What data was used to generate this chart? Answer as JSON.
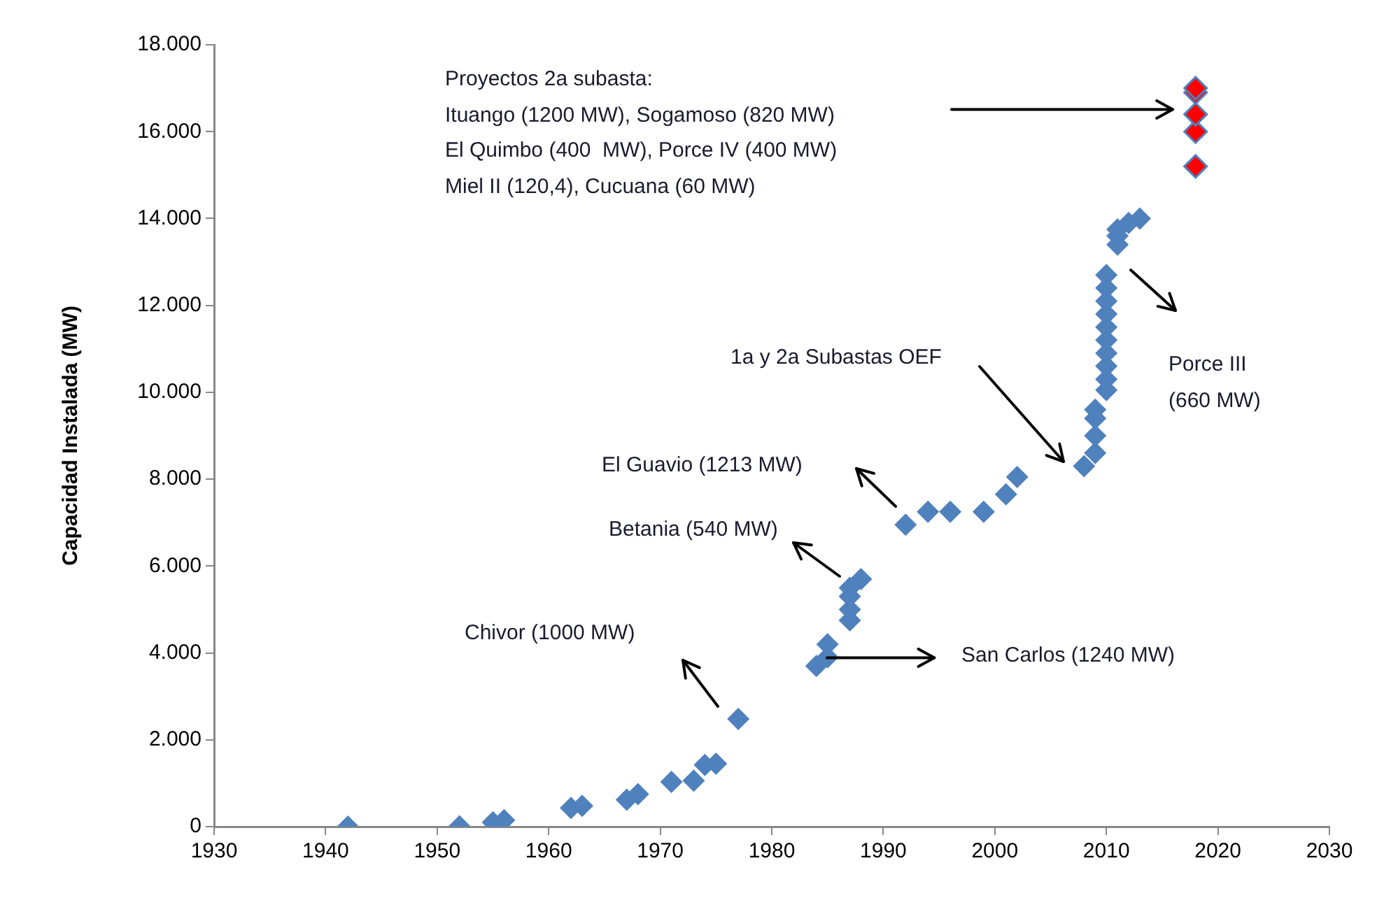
{
  "chart_data": {
    "type": "scatter",
    "ylabel": "Capacidad Instalada (MW)",
    "marker": "diamond",
    "grid": false,
    "legend": false,
    "xlim": [
      1930,
      2030
    ],
    "xticks": [
      1930,
      1940,
      1950,
      1960,
      1970,
      1980,
      1990,
      2000,
      2010,
      2020,
      2030
    ],
    "ylim": [
      0,
      18000
    ],
    "yticks": [
      0,
      {
        "value": 2000,
        "label": "2.000"
      },
      {
        "value": 4000,
        "label": "4.000"
      },
      {
        "value": 6000,
        "label": "6.000"
      },
      {
        "value": 8000,
        "label": "8.000"
      },
      {
        "value": 10000,
        "label": "10.000"
      },
      {
        "value": 12000,
        "label": "12.000"
      },
      {
        "value": 14000,
        "label": "14.000"
      },
      {
        "value": 16000,
        "label": "16.000"
      },
      {
        "value": 18000,
        "label": "18.000"
      }
    ],
    "series": [
      {
        "color": "#4f81bd",
        "x": [
          1942,
          1952,
          1955,
          1956,
          1962,
          1963,
          1967,
          1968,
          1971,
          1973,
          1974,
          1975,
          1977,
          1984,
          1985,
          1985,
          1987,
          1987,
          1987,
          1987,
          1988,
          1992,
          1994,
          1996,
          1999,
          2001,
          2002,
          2008,
          2009,
          2009,
          2009,
          2009,
          2010,
          2010,
          2010,
          2010,
          2010,
          2010,
          2010,
          2010,
          2010,
          2010,
          2011,
          2011,
          2011,
          2012,
          2013
        ],
        "values": [
          0,
          10,
          100,
          150,
          430,
          480,
          620,
          750,
          1030,
          1060,
          1420,
          1450,
          2480,
          3700,
          3900,
          4200,
          4750,
          5000,
          5300,
          5500,
          5700,
          6950,
          7250,
          7250,
          7250,
          7650,
          8050,
          8300,
          8600,
          9000,
          9400,
          9600,
          10050,
          10300,
          10600,
          10900,
          11200,
          11500,
          11800,
          12100,
          12400,
          12700,
          13400,
          13600,
          13750,
          13900,
          14000
        ]
      },
      {
        "color": "#ff0000",
        "x": [
          2018,
          2018,
          2018,
          2018,
          2018
        ],
        "values": [
          15200,
          16000,
          16400,
          16900,
          17000
        ]
      }
    ],
    "annotations": [
      "Proyectos 2a subasta:\nItuango (1200 MW), Sogamoso (820 MW)\nEl Quimbo (400  MW), Porce IV (400 MW)\nMiel II (120,4), Cucuana (60 MW)",
      "1a y 2a Subastas OEF",
      "Porce III\n(660 MW)",
      "El Guavio (1213 MW)",
      "Betania (540 MW)",
      "Chivor (1000 MW)",
      {
        "text": "San Carlos (1240 MW)",
        "x": 1985,
        "y": 3900
      }
    ]
  }
}
